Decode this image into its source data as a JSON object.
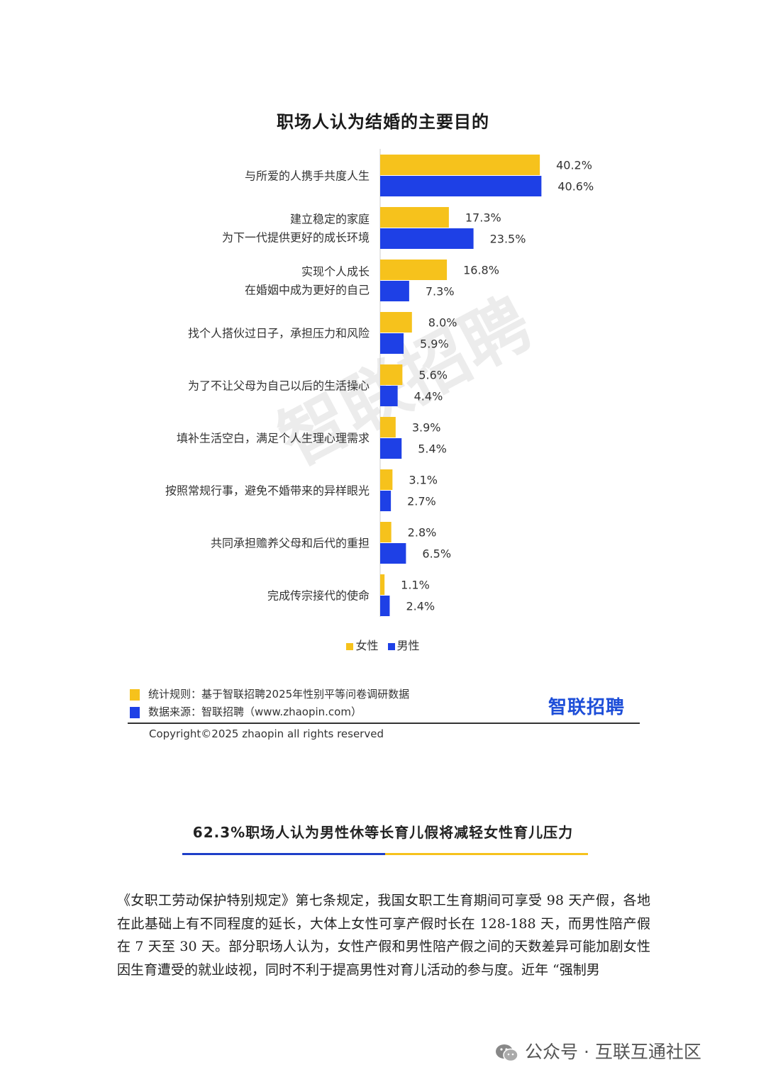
{
  "chart_data": {
    "type": "bar",
    "orientation": "horizontal",
    "title": "职场人认为结婚的主要目的",
    "categories": [
      [
        "与所爱的人携手共度人生"
      ],
      [
        "建立稳定的家庭",
        "为下一代提供更好的成长环境"
      ],
      [
        "实现个人成长",
        "在婚姻中成为更好的自己"
      ],
      [
        "找个人搭伙过日子，承担压力和风险"
      ],
      [
        "为了不让父母为自己以后的生活操心"
      ],
      [
        "填补生活空白，满足个人生理心理需求"
      ],
      [
        "按照常规行事，避免不婚带来的异样眼光"
      ],
      [
        "共同承担赡养父母和后代的重担"
      ],
      [
        "完成传宗接代的使命"
      ]
    ],
    "series": [
      {
        "name": "女性",
        "color": "#f6c21c",
        "values": [
          40.2,
          17.3,
          16.8,
          8.0,
          5.6,
          3.9,
          3.1,
          2.8,
          1.1
        ]
      },
      {
        "name": "男性",
        "color": "#1e40e6",
        "values": [
          40.6,
          23.5,
          7.3,
          5.9,
          4.4,
          5.4,
          2.7,
          6.5,
          2.4
        ]
      }
    ],
    "value_suffix": "%",
    "legend_position": "bottom",
    "grid": false
  },
  "footer": {
    "rule_label": "统计规则：基于智联招聘2025年性别平等问卷调研数据",
    "source_label": "数据来源：智联招聘（www.zhaopin.com）",
    "copyright": "Copyright©2025 zhaopin all rights reserved",
    "brand": "智联招聘"
  },
  "watermark": "智联招聘",
  "section_title": "62.3%职场人认为男性休等长育儿假将减轻女性育儿压力",
  "body_text": "《女职工劳动保护特别规定》第七条规定，我国女职工生育期间可享受 98 天产假，各地在此基础上有不同程度的延长，大体上女性可享产假时长在 128-188 天，而男性陪产假在 7 天至 30 天。部分职场人认为，女性产假和男性陪产假之间的天数差异可能加剧女性因生育遭受的就业歧视，同时不利于提高男性对育儿活动的参与度。近年 “强制男",
  "signature": "公众号 · 互联互通社区",
  "colors": {
    "accent_blue": "#1e3fc8",
    "accent_yellow": "#f6c21c"
  }
}
